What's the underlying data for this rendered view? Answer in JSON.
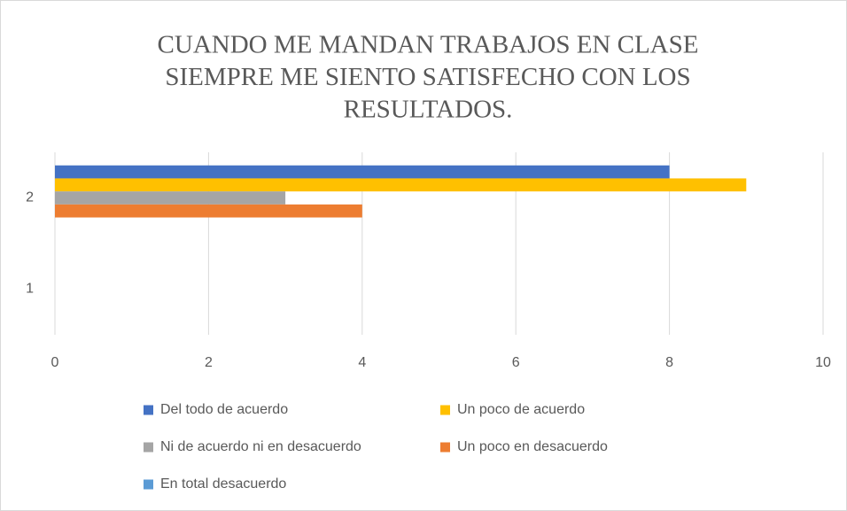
{
  "chart_data": {
    "type": "hbar",
    "title": [
      "CUANDO ME MANDAN TRABAJOS EN CLASE",
      "SIEMPRE ME SIENTO SATISFECHO CON LOS",
      "RESULTADOS."
    ],
    "categories": [
      "1",
      "2"
    ],
    "series": [
      {
        "name": "Del todo de acuerdo",
        "color": "#4472c4",
        "values": [
          null,
          8
        ]
      },
      {
        "name": "Un poco de acuerdo",
        "color": "#ffc000",
        "values": [
          null,
          9
        ]
      },
      {
        "name": "Ni de acuerdo ni en desacuerdo",
        "color": "#a5a5a5",
        "values": [
          null,
          3
        ]
      },
      {
        "name": "Un poco en desacuerdo",
        "color": "#ed7d31",
        "values": [
          null,
          4
        ]
      },
      {
        "name": "En total desacuerdo",
        "color": "#5b9bd5",
        "values": [
          null,
          null
        ]
      }
    ],
    "xlim": [
      0,
      10
    ],
    "xticks": [
      0,
      2,
      4,
      6,
      8,
      10
    ],
    "grid": true,
    "legend": "bottom"
  }
}
